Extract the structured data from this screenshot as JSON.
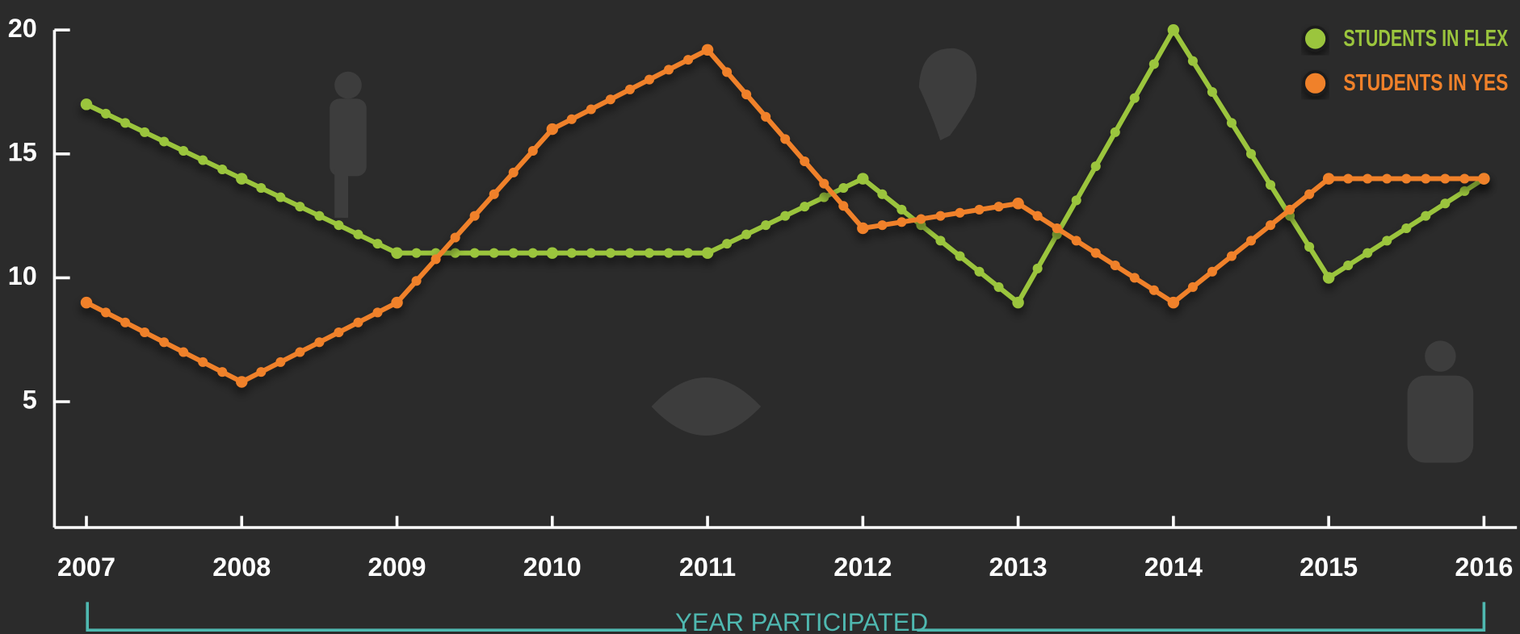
{
  "chart_data": {
    "type": "line",
    "categories": [
      "2007",
      "2008",
      "2009",
      "2010",
      "2011",
      "2012",
      "2013",
      "2014",
      "2015",
      "2016"
    ],
    "x_label": "YEAR PARTICIPATED",
    "series": [
      {
        "name": "STUDENTS IN FLEX",
        "color": "#9bc53d",
        "values": [
          17,
          14,
          11,
          11,
          11,
          14,
          9,
          20,
          10,
          14
        ]
      },
      {
        "name": "STUDENTS IN YES",
        "color": "#f0812a",
        "values": [
          9,
          5.8,
          9,
          16,
          19.2,
          12,
          13,
          9,
          14,
          14
        ]
      }
    ],
    "ylim": [
      0,
      20
    ],
    "yticks": [
      5,
      10,
      15,
      20
    ],
    "legend": "top-right",
    "axis_color": "#ffffff",
    "label_color": "#4fb8b0",
    "background": "#2b2b2b"
  }
}
